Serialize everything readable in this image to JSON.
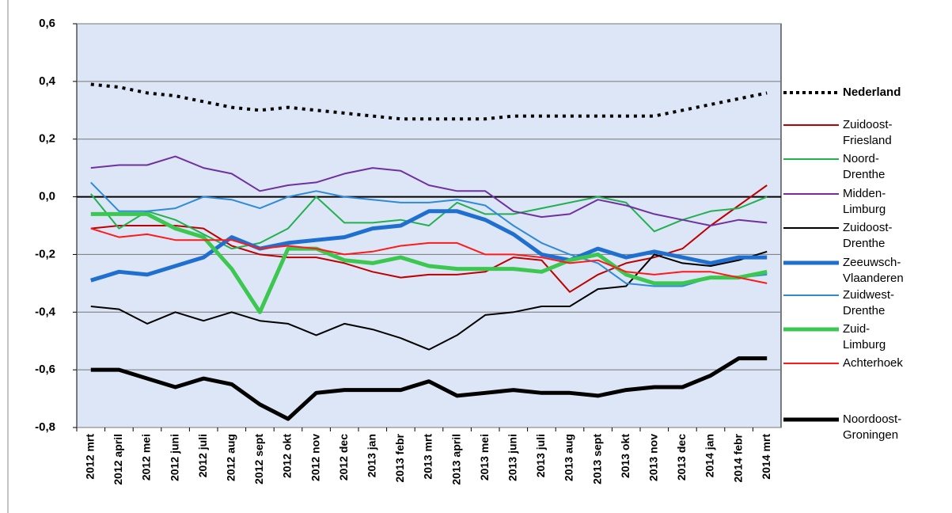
{
  "chart_data": {
    "type": "line",
    "categories": [
      "2012 mrt",
      "2012 april",
      "2012 mei",
      "2012 juni",
      "2012 juli",
      "2012 aug",
      "2012 sept",
      "2012 okt",
      "2012 nov",
      "2012 dec",
      "2013 jan",
      "2013 febr",
      "2013 mrt",
      "2013 april",
      "2013 mei",
      "2013 juni",
      "2013 juli",
      "2013 aug",
      "2013 sept",
      "2013 okt",
      "2013 nov",
      "2013 dec",
      "2014 jan",
      "2014 febr",
      "2014 mrt"
    ],
    "ylim": [
      -0.8,
      0.6
    ],
    "yticks": [
      {
        "value": -0.8,
        "label": "-0,8"
      },
      {
        "value": -0.6,
        "label": "-0,6"
      },
      {
        "value": -0.4,
        "label": "-0,4"
      },
      {
        "value": -0.2,
        "label": "-0,2"
      },
      {
        "value": 0,
        "label": "0,0"
      },
      {
        "value": 0.2,
        "label": "0,2"
      },
      {
        "value": 0.4,
        "label": "0,4"
      },
      {
        "value": 0.6,
        "label": "0,6"
      }
    ],
    "grid": true,
    "series": [
      {
        "name": "Nederland",
        "color": "#000000",
        "line_width": 4,
        "style": "dotted",
        "values": [
          0.39,
          0.38,
          0.36,
          0.35,
          0.33,
          0.31,
          0.3,
          0.31,
          0.3,
          0.29,
          0.28,
          0.27,
          0.27,
          0.27,
          0.27,
          0.28,
          0.28,
          0.28,
          0.28,
          0.28,
          0.28,
          0.3,
          0.32,
          0.34,
          0.36
        ]
      },
      {
        "name": "Zuidoost-Friesland",
        "color": "#c00000",
        "line_width": 2,
        "values": [
          -0.11,
          -0.1,
          -0.1,
          -0.1,
          -0.11,
          -0.17,
          -0.2,
          -0.21,
          -0.21,
          -0.23,
          -0.26,
          -0.28,
          -0.27,
          -0.27,
          -0.26,
          -0.21,
          -0.22,
          -0.33,
          -0.27,
          -0.23,
          -0.21,
          -0.18,
          -0.1,
          -0.03,
          0.04
        ]
      },
      {
        "name": "Noord-Drenthe",
        "color": "#22b050",
        "line_width": 2,
        "values": [
          0.01,
          -0.11,
          -0.05,
          -0.08,
          -0.13,
          -0.18,
          -0.16,
          -0.11,
          0.0,
          -0.09,
          -0.09,
          -0.08,
          -0.1,
          -0.02,
          -0.06,
          -0.06,
          -0.04,
          -0.02,
          0.0,
          -0.02,
          -0.12,
          -0.08,
          -0.05,
          -0.04,
          0.0
        ]
      },
      {
        "name": "Midden-Limburg",
        "color": "#7030a0",
        "line_width": 2,
        "values": [
          0.1,
          0.11,
          0.11,
          0.14,
          0.1,
          0.08,
          0.02,
          0.04,
          0.05,
          0.08,
          0.1,
          0.09,
          0.04,
          0.02,
          0.02,
          -0.05,
          -0.07,
          -0.06,
          -0.01,
          -0.03,
          -0.06,
          -0.08,
          -0.1,
          -0.08,
          -0.09
        ]
      },
      {
        "name": "Zuidoost-Drenthe",
        "color": "#000000",
        "line_width": 2,
        "values": [
          -0.38,
          -0.39,
          -0.44,
          -0.4,
          -0.43,
          -0.4,
          -0.43,
          -0.44,
          -0.48,
          -0.44,
          -0.46,
          -0.49,
          -0.53,
          -0.48,
          -0.41,
          -0.4,
          -0.38,
          -0.38,
          -0.32,
          -0.31,
          -0.2,
          -0.23,
          -0.24,
          -0.22,
          -0.19
        ]
      },
      {
        "name": "Zeeuwsch-Vlaanderen",
        "color": "#1f6fd0",
        "line_width": 5,
        "values": [
          -0.29,
          -0.26,
          -0.27,
          -0.24,
          -0.21,
          -0.14,
          -0.18,
          -0.16,
          -0.15,
          -0.14,
          -0.11,
          -0.1,
          -0.05,
          -0.05,
          -0.08,
          -0.13,
          -0.2,
          -0.22,
          -0.18,
          -0.21,
          -0.19,
          -0.21,
          -0.23,
          -0.21,
          -0.21
        ]
      },
      {
        "name": "Zuidwest-Drenthe",
        "color": "#2e8bd8",
        "line_width": 2,
        "values": [
          0.05,
          -0.05,
          -0.05,
          -0.04,
          0.0,
          -0.01,
          -0.04,
          0.0,
          0.02,
          0.0,
          -0.01,
          -0.02,
          -0.02,
          -0.01,
          -0.03,
          -0.1,
          -0.16,
          -0.2,
          -0.23,
          -0.3,
          -0.31,
          -0.31,
          -0.28,
          -0.28,
          -0.27
        ]
      },
      {
        "name": "Zuid-Limburg",
        "color": "#3cc850",
        "line_width": 5,
        "values": [
          -0.06,
          -0.06,
          -0.06,
          -0.11,
          -0.14,
          -0.25,
          -0.4,
          -0.18,
          -0.18,
          -0.22,
          -0.23,
          -0.21,
          -0.24,
          -0.25,
          -0.25,
          -0.25,
          -0.26,
          -0.22,
          -0.2,
          -0.27,
          -0.3,
          -0.3,
          -0.28,
          -0.28,
          -0.26
        ]
      },
      {
        "name": "Achterhoek",
        "color": "#ff1a1a",
        "line_width": 2,
        "values": [
          -0.11,
          -0.14,
          -0.13,
          -0.15,
          -0.15,
          -0.15,
          -0.18,
          -0.17,
          -0.18,
          -0.2,
          -0.19,
          -0.17,
          -0.16,
          -0.16,
          -0.2,
          -0.2,
          -0.21,
          -0.23,
          -0.22,
          -0.26,
          -0.27,
          -0.26,
          -0.26,
          -0.28,
          -0.3
        ]
      },
      {
        "name": "Noordoost-Groningen",
        "color": "#000000",
        "line_width": 5,
        "values": [
          -0.6,
          -0.6,
          -0.63,
          -0.66,
          -0.63,
          -0.65,
          -0.72,
          -0.77,
          -0.68,
          -0.67,
          -0.67,
          -0.67,
          -0.64,
          -0.69,
          -0.68,
          -0.67,
          -0.68,
          -0.68,
          -0.69,
          -0.67,
          -0.66,
          -0.66,
          -0.62,
          -0.56,
          -0.56
        ]
      }
    ]
  }
}
